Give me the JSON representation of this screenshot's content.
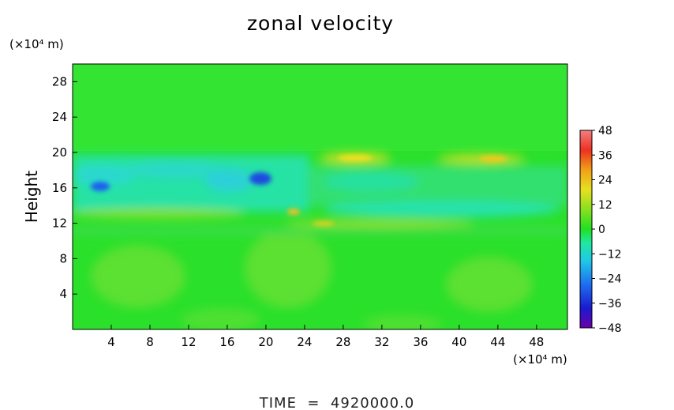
{
  "chart_data": {
    "type": "heatmap",
    "title": "zonal velocity",
    "ylabel": "Height",
    "y_unit": "(×10⁴ m)",
    "x_unit": "(×10⁴ m)",
    "x_ticks": [
      4,
      8,
      12,
      16,
      20,
      24,
      28,
      32,
      36,
      40,
      44,
      48
    ],
    "y_ticks": [
      4,
      8,
      12,
      16,
      20,
      24,
      28
    ],
    "xlim": [
      0,
      51.2
    ],
    "ylim": [
      0,
      30
    ],
    "colorbar": {
      "ticks": [
        48,
        36,
        24,
        12,
        0,
        -12,
        -24,
        -36,
        -48
      ],
      "range": [
        -48,
        48
      ]
    },
    "field_features": [
      {
        "x": 4,
        "y": 16.6,
        "value": -30
      },
      {
        "x": 19.5,
        "y": 17.2,
        "value": -32
      },
      {
        "x": 10,
        "y": 18.5,
        "value": -13
      },
      {
        "x": 30,
        "y": 19.3,
        "value": 18
      },
      {
        "x": 43,
        "y": 19.2,
        "value": 22
      },
      {
        "x": 22.5,
        "y": 13.5,
        "value": 18
      },
      {
        "x": 6,
        "y": 12.8,
        "value": 10
      },
      {
        "x": 29,
        "y": 12.0,
        "value": 14
      },
      {
        "x": 38,
        "y": 13.8,
        "value": -10
      },
      {
        "x": 6,
        "y": 6,
        "value": 5
      },
      {
        "x": 22,
        "y": 7,
        "value": 5
      },
      {
        "x": 46,
        "y": 5,
        "value": 5
      }
    ],
    "footer": "TIME  =  4920000.0"
  }
}
